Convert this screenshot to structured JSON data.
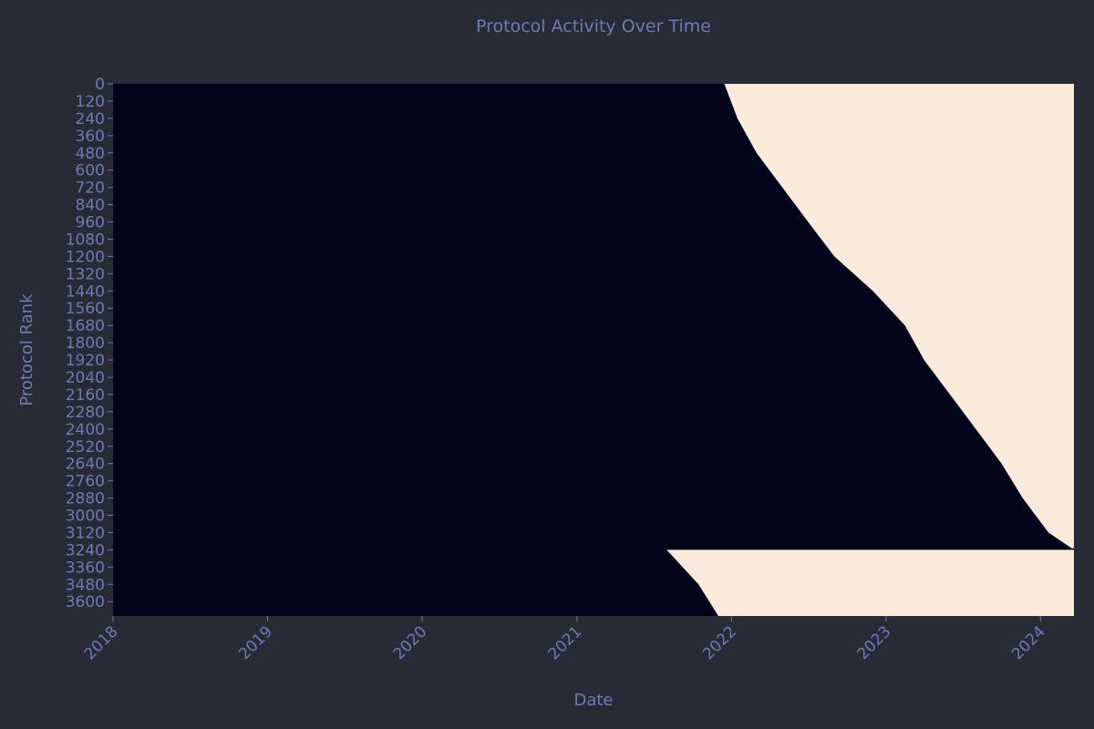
{
  "chart_data": {
    "type": "heatmap",
    "title": "Protocol Activity Over Time",
    "xlabel": "Date",
    "ylabel": "Protocol Rank",
    "x_ticks": [
      "2018",
      "2019",
      "2020",
      "2021",
      "2022",
      "2023",
      "2024"
    ],
    "x_tick_dates": [
      "2018-01-01",
      "2019-01-01",
      "2020-01-01",
      "2021-01-01",
      "2022-01-01",
      "2023-01-01",
      "2024-01-01"
    ],
    "xlim": [
      "2018-01-01",
      "2024-03-20"
    ],
    "y_ticks": [
      0,
      120,
      240,
      360,
      480,
      600,
      720,
      840,
      960,
      1080,
      1200,
      1320,
      1440,
      1560,
      1680,
      1800,
      1920,
      2040,
      2160,
      2280,
      2400,
      2520,
      2640,
      2760,
      2880,
      3000,
      3120,
      3240,
      3360,
      3480,
      3600
    ],
    "ylim": [
      0,
      3700
    ],
    "colors": {
      "inactive": "#03051a",
      "active": "#faebdd"
    },
    "activity_onset": [
      {
        "rank": 0,
        "date": "2021-12-15"
      },
      {
        "rank": 240,
        "date": "2022-01-15"
      },
      {
        "rank": 480,
        "date": "2022-03-01"
      },
      {
        "rank": 720,
        "date": "2022-05-01"
      },
      {
        "rank": 960,
        "date": "2022-07-01"
      },
      {
        "rank": 1200,
        "date": "2022-09-01"
      },
      {
        "rank": 1440,
        "date": "2022-12-01"
      },
      {
        "rank": 1680,
        "date": "2023-02-15"
      },
      {
        "rank": 1920,
        "date": "2023-04-01"
      },
      {
        "rank": 2160,
        "date": "2023-06-01"
      },
      {
        "rank": 2400,
        "date": "2023-08-01"
      },
      {
        "rank": 2640,
        "date": "2023-10-01"
      },
      {
        "rank": 2880,
        "date": "2023-11-20"
      },
      {
        "rank": 3120,
        "date": "2024-01-20"
      },
      {
        "rank": 3230,
        "date": "2024-03-15"
      },
      {
        "rank": 3240,
        "date": "2021-08-01"
      },
      {
        "rank": 3480,
        "date": "2021-10-15"
      },
      {
        "rank": 3700,
        "date": "2021-12-01"
      }
    ],
    "grid": false,
    "legend": "none"
  }
}
